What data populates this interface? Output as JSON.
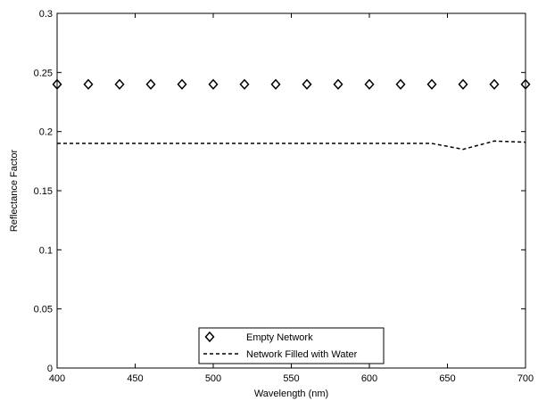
{
  "chart_data": {
    "type": "line",
    "title": "",
    "xlabel": "Wavelength (nm)",
    "ylabel": "Reflectance Factor",
    "xlim": [
      400,
      700
    ],
    "ylim": [
      0,
      0.3
    ],
    "xticks": [
      "400",
      "450",
      "500",
      "550",
      "600",
      "650",
      "700"
    ],
    "yticks": [
      "0",
      "0.05",
      "0.1",
      "0.15",
      "0.2",
      "0.25",
      "0.3"
    ],
    "grid": false,
    "legend_position": "bottom-center",
    "series": [
      {
        "name": "Empty Network",
        "style": "diamond-markers",
        "color": "#000000",
        "x": [
          400,
          420,
          440,
          460,
          480,
          500,
          520,
          540,
          560,
          580,
          600,
          620,
          640,
          660,
          680,
          700
        ],
        "y": [
          0.24,
          0.24,
          0.24,
          0.24,
          0.24,
          0.24,
          0.24,
          0.24,
          0.24,
          0.24,
          0.24,
          0.24,
          0.24,
          0.24,
          0.24,
          0.24
        ]
      },
      {
        "name": "Network Filled with Water",
        "style": "dashed-line",
        "color": "#000000",
        "x": [
          400,
          420,
          440,
          460,
          480,
          500,
          520,
          540,
          560,
          580,
          600,
          620,
          640,
          660,
          680,
          700
        ],
        "y": [
          0.19,
          0.19,
          0.19,
          0.19,
          0.19,
          0.19,
          0.19,
          0.19,
          0.19,
          0.19,
          0.19,
          0.19,
          0.19,
          0.185,
          0.192,
          0.191
        ]
      }
    ]
  }
}
